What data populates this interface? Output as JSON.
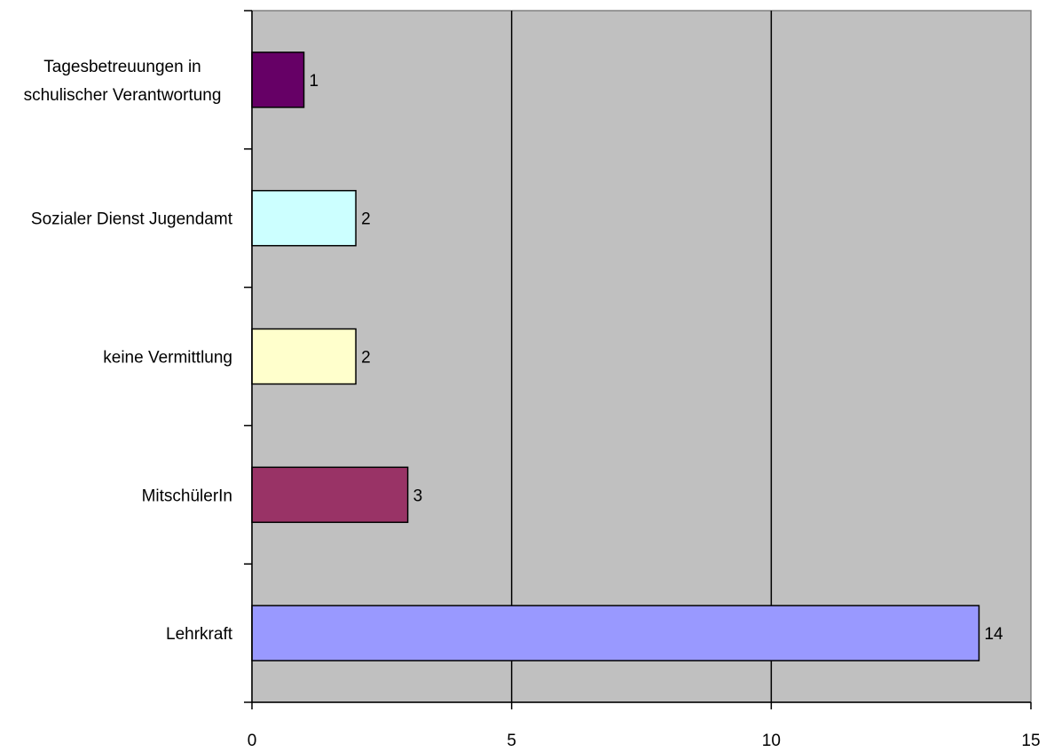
{
  "chart_data": {
    "type": "bar",
    "orientation": "horizontal",
    "categories": [
      [
        "Tagesbetreuungen in",
        "schulischer Verantwortung"
      ],
      [
        "Sozialer Dienst Jugendamt"
      ],
      [
        "keine Vermittlung"
      ],
      [
        "MitschülerIn"
      ],
      [
        "Lehrkraft"
      ]
    ],
    "values": [
      1,
      2,
      2,
      3,
      14
    ],
    "data_labels": [
      "1",
      "2",
      "2",
      "3",
      "14"
    ],
    "bar_colors": [
      "#660066",
      "#CCFFFF",
      "#FFFFCC",
      "#993366",
      "#9999FF"
    ],
    "xlim": [
      0,
      15
    ],
    "x_ticks": [
      0,
      5,
      10,
      15
    ],
    "x_tick_labels": [
      "0",
      "5",
      "10",
      "15"
    ],
    "grid": "vertical major gridlines",
    "plot_background": "#C0C0C0",
    "legend": "none",
    "title": "",
    "xlabel": "",
    "ylabel": ""
  }
}
